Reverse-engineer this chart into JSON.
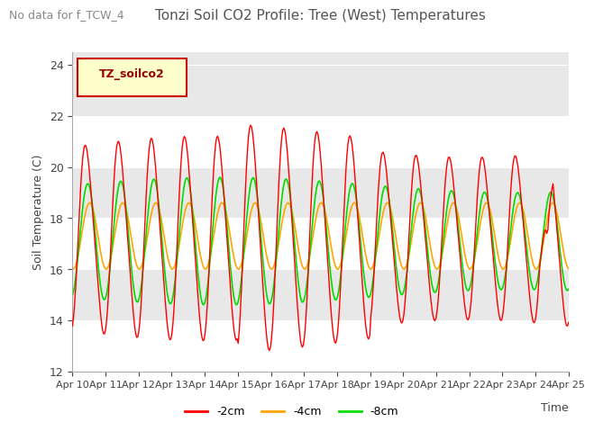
{
  "title": "Tonzi Soil CO2 Profile: Tree (West) Temperatures",
  "subtitle": "No data for f_TCW_4",
  "ylabel": "Soil Temperature (C)",
  "xlabel": "Time",
  "ylim": [
    12,
    24.5
  ],
  "yticks": [
    12,
    14,
    16,
    18,
    20,
    22,
    24
  ],
  "xtick_labels": [
    "Apr 10",
    "Apr 11",
    "Apr 12",
    "Apr 13",
    "Apr 14",
    "Apr 15",
    "Apr 16",
    "Apr 17",
    "Apr 18",
    "Apr 19",
    "Apr 20",
    "Apr 21",
    "Apr 22",
    "Apr 23",
    "Apr 24",
    "Apr 25"
  ],
  "legend_label": "TZ_soilco2",
  "legend_items": [
    {
      "label": "-2cm",
      "color": "#ff0000"
    },
    {
      "label": "-4cm",
      "color": "#ffa500"
    },
    {
      "label": "-8cm",
      "color": "#00dd00"
    }
  ],
  "line_2cm_color": "#ff0000",
  "line_4cm_color": "#ffa500",
  "line_8cm_color": "#00dd00",
  "title_color": "#555555",
  "subtitle_color": "#888888",
  "n_points": 480
}
